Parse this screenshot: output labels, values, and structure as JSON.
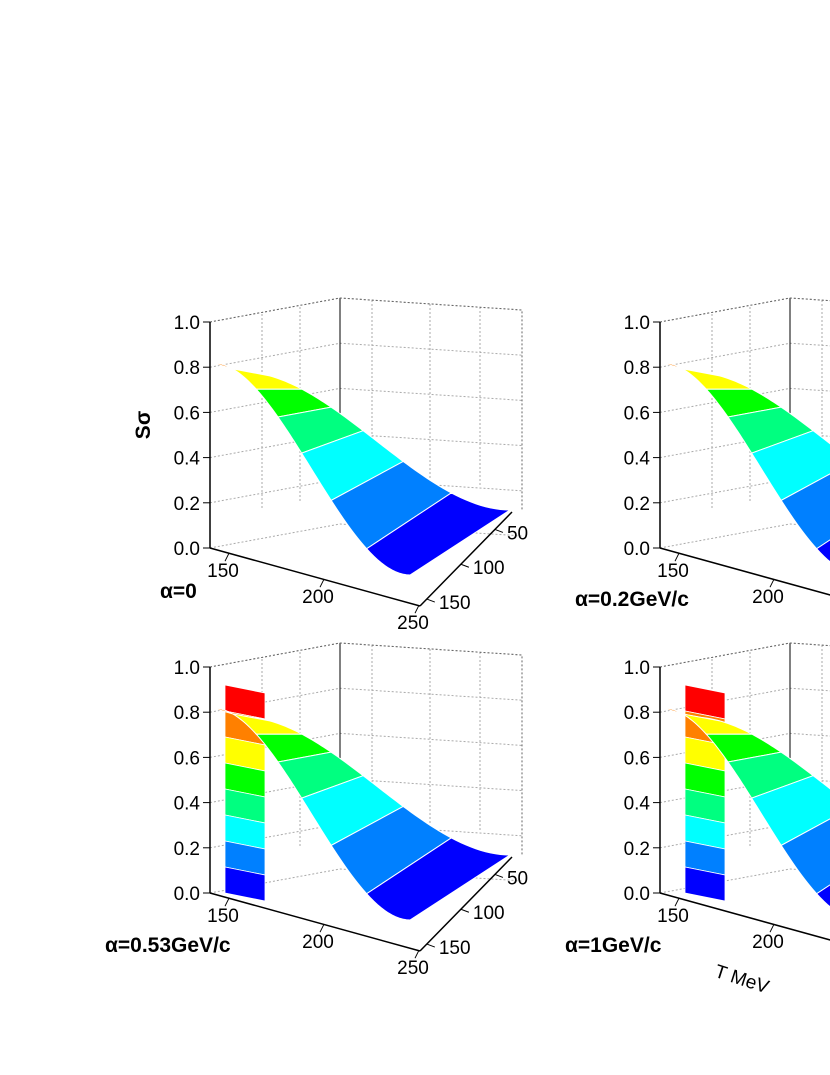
{
  "figure": {
    "z_label": "Sσ",
    "x_label": "T MeV",
    "zticks": [
      {
        "value": 0,
        "label": "0.0"
      },
      0.2,
      0.4,
      0.6,
      0.8,
      {
        "value": 1,
        "label": "1.0"
      }
    ],
    "xticks": [
      150,
      200,
      250
    ],
    "yticks": [
      50,
      100,
      150
    ],
    "panels": [
      {
        "label": "α=0"
      },
      {
        "label": "α=0.2GeV/c"
      },
      {
        "label": "α=0.53GeV/c"
      },
      {
        "label": "α=1GeV/c"
      }
    ]
  }
}
